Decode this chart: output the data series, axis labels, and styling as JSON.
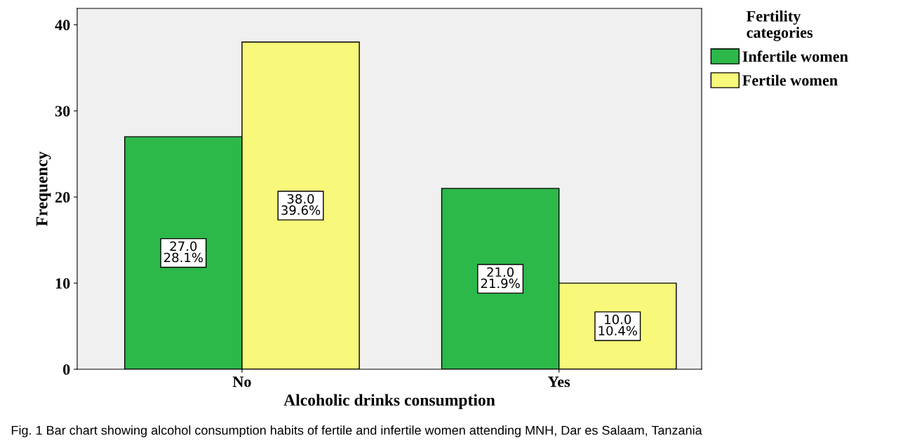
{
  "chart_data": {
    "type": "bar",
    "xlabel": "Alcoholic drinks consumption",
    "ylabel": "Frequency",
    "categories": [
      "No",
      "Yes"
    ],
    "series": [
      {
        "name": "Infertile women",
        "color": "#2db84a",
        "values": [
          27,
          21
        ],
        "value_labels": [
          "27.0\n28.1%",
          "21.0\n21.9%"
        ]
      },
      {
        "name": "Fertile women",
        "color": "#f8f87a",
        "values": [
          38,
          10
        ],
        "value_labels": [
          "38.0\n39.6%",
          "10.0\n10.4%"
        ]
      }
    ],
    "legend_title": "Fertility\ncategories",
    "legend": "top right",
    "ylim": [
      0,
      41.9
    ],
    "yticks": [
      0,
      10,
      20,
      30,
      40
    ],
    "grid": false,
    "annotations": [
      "Fig. 1 Bar chart showing alcohol consumption habits of fertile and infertile women attending MNH, Dar es Salaam, Tanzania"
    ]
  }
}
